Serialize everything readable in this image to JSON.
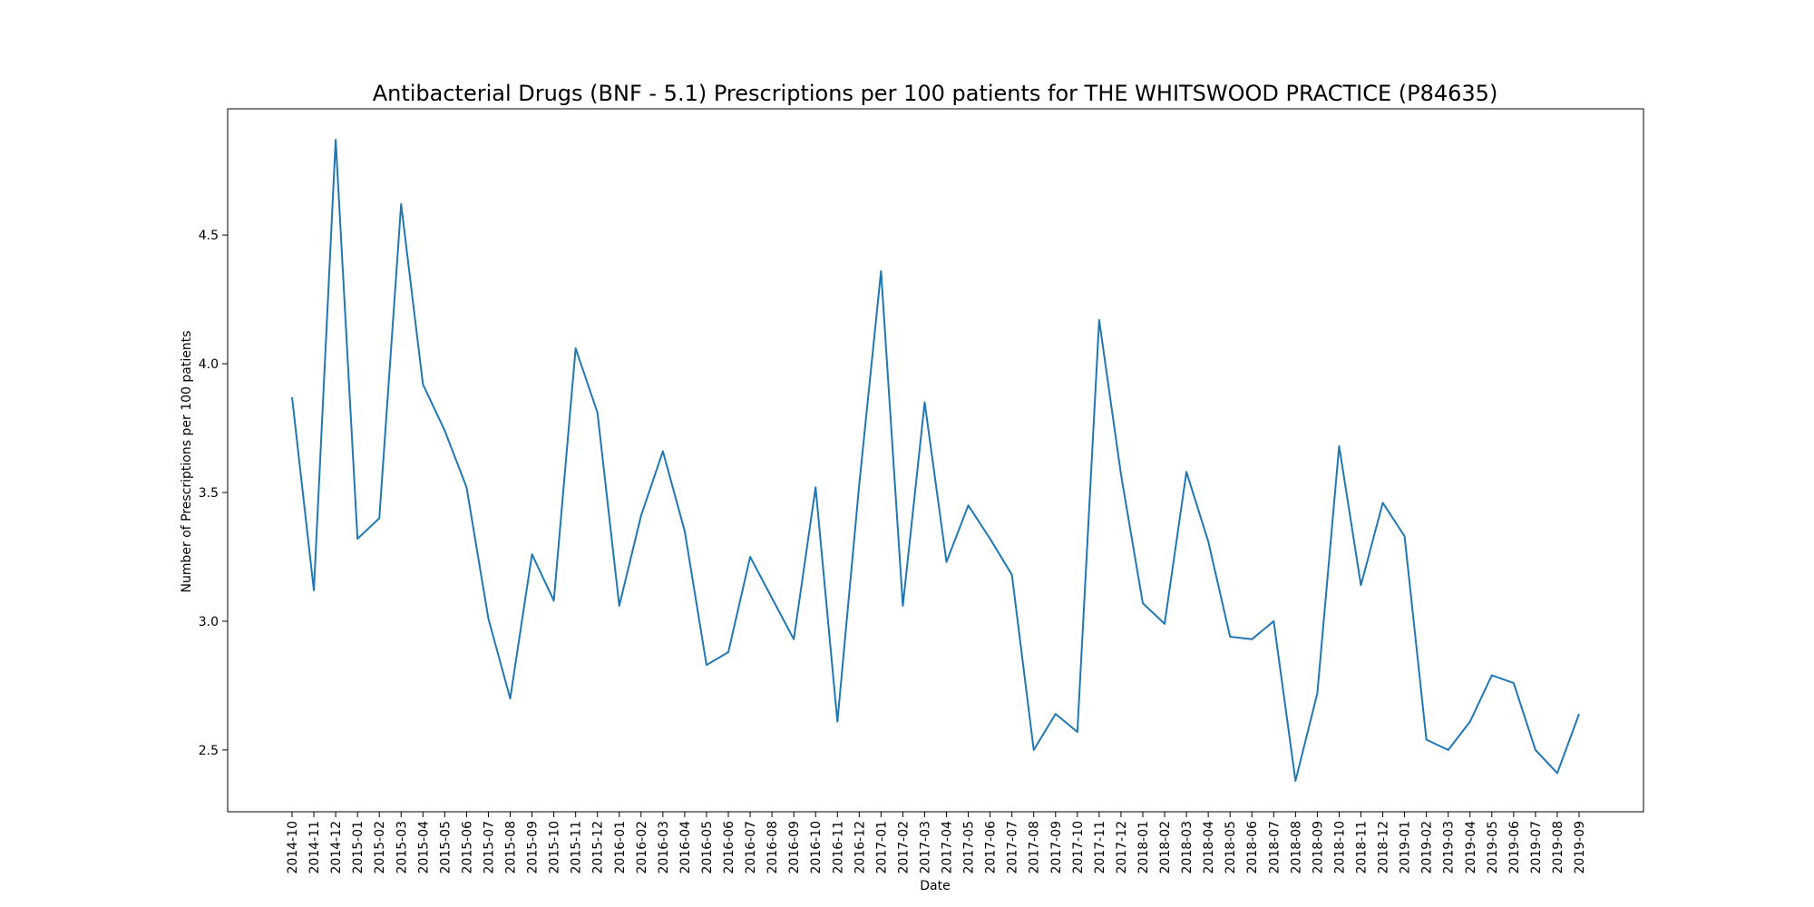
{
  "chart_data": {
    "type": "line",
    "title": "Antibacterial Drugs (BNF - 5.1) Prescriptions per 100 patients for THE WHITSWOOD PRACTICE (P84635)",
    "xlabel": "Date",
    "ylabel": "Number of Prescriptions per 100 patients",
    "ylim": [
      2.26,
      4.99
    ],
    "yticks": [
      "2.5",
      "3.0",
      "3.5",
      "4.0",
      "4.5"
    ],
    "grid": false,
    "line_color": "#1f77b4",
    "series": [
      {
        "x": [
          "2014-10",
          "2014-11",
          "2014-12",
          "2015-01",
          "2015-02",
          "2015-03",
          "2015-04",
          "2015-05",
          "2015-06",
          "2015-07",
          "2015-08",
          "2015-09",
          "2015-10",
          "2015-11",
          "2015-12",
          "2016-01",
          "2016-02",
          "2016-03",
          "2016-04",
          "2016-05",
          "2016-06",
          "2016-07",
          "2016-08",
          "2016-09",
          "2016-10",
          "2016-11",
          "2016-12",
          "2017-01",
          "2017-02",
          "2017-03",
          "2017-04",
          "2017-05",
          "2017-06",
          "2017-07",
          "2017-08",
          "2017-09",
          "2017-10",
          "2017-11",
          "2017-12",
          "2018-01",
          "2018-02",
          "2018-03",
          "2018-04",
          "2018-05",
          "2018-06",
          "2018-07",
          "2018-08",
          "2018-09",
          "2018-10",
          "2018-11",
          "2018-12",
          "2019-01",
          "2019-02",
          "2019-03",
          "2019-04",
          "2019-05",
          "2019-06",
          "2019-07",
          "2019-08",
          "2019-09"
        ],
        "values": [
          3.87,
          3.12,
          4.87,
          3.32,
          3.4,
          4.62,
          3.92,
          3.74,
          3.52,
          3.01,
          2.7,
          3.26,
          3.08,
          4.06,
          3.81,
          3.06,
          3.41,
          3.66,
          3.35,
          2.83,
          2.88,
          3.25,
          3.09,
          2.93,
          3.52,
          2.61,
          3.53,
          4.36,
          3.06,
          3.85,
          3.23,
          3.45,
          3.32,
          3.18,
          2.5,
          2.64,
          2.57,
          4.17,
          3.57,
          3.07,
          2.99,
          3.58,
          3.31,
          2.94,
          2.93,
          3.0,
          2.38,
          2.72,
          3.68,
          3.14,
          3.46,
          3.33,
          2.54,
          2.5,
          2.61,
          2.79,
          2.76,
          2.5,
          2.41,
          2.64
        ]
      }
    ]
  }
}
